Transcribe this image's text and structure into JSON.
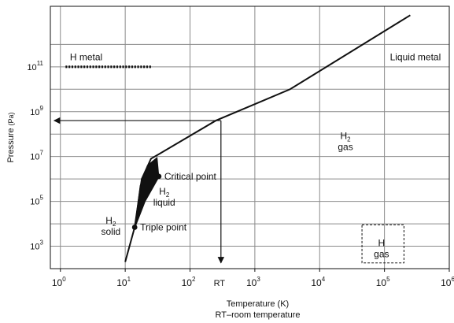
{
  "chart_data": {
    "type": "line",
    "title": "",
    "xlabel": "Temperature (K)",
    "ylabel": "Pressure (Pa)",
    "caption": "RT–room temperature",
    "x_scale": "log",
    "y_scale": "log",
    "xlim": [
      0.7,
      1000000
    ],
    "ylim": [
      100,
      50000000000000.0
    ],
    "grid": true,
    "x_ticks": [
      {
        "value": 1,
        "base": "10",
        "exp": "0"
      },
      {
        "value": 10,
        "base": "10",
        "exp": "1"
      },
      {
        "value": 100,
        "base": "10",
        "exp": "2"
      },
      {
        "value": 1000,
        "base": "10",
        "exp": "3"
      },
      {
        "value": 10000,
        "base": "10",
        "exp": "4"
      },
      {
        "value": 100000,
        "base": "10",
        "exp": "5"
      },
      {
        "value": 1000000,
        "base": "10",
        "exp": "6"
      }
    ],
    "y_ticks": [
      {
        "value": 1000,
        "base": "10",
        "exp": "3"
      },
      {
        "value": 100000,
        "base": "10",
        "exp": "5"
      },
      {
        "value": 10000000,
        "base": "10",
        "exp": "7"
      },
      {
        "value": 1000000000,
        "base": "10",
        "exp": "9"
      },
      {
        "value": 100000000000,
        "base": "10",
        "exp": "11"
      }
    ],
    "rt_marker": {
      "label": "RT",
      "x": 300
    },
    "series": [
      {
        "id": "melting",
        "style": "solid",
        "points": [
          [
            10,
            200
          ],
          [
            14,
            7000
          ]
        ]
      },
      {
        "id": "upper",
        "style": "solid",
        "points": [
          [
            14,
            7000
          ],
          [
            18,
            1000000
          ],
          [
            25,
            8000000
          ],
          [
            32,
            12000000
          ],
          [
            250,
            400000000
          ],
          [
            3500,
            10000000000
          ],
          [
            250000,
            20000000000000
          ]
        ]
      },
      {
        "id": "boiling",
        "style": "solid",
        "points": [
          [
            14,
            7000
          ],
          [
            20,
            100000
          ],
          [
            33,
            1300000
          ]
        ]
      },
      {
        "id": "metal-boundary",
        "style": "dotted",
        "points": [
          [
            1.2,
            100000000000
          ],
          [
            25,
            100000000000
          ]
        ]
      }
    ],
    "region_fill": {
      "points": [
        [
          14,
          7000
        ],
        [
          17,
          500000
        ],
        [
          22,
          4000000
        ],
        [
          31,
          9000000
        ],
        [
          33,
          1300000
        ],
        [
          20,
          100000
        ]
      ]
    },
    "points": [
      {
        "id": "triple-point",
        "x": 14,
        "y": 7000,
        "label": "Triple point"
      },
      {
        "id": "critical-point",
        "x": 33,
        "y": 1300000,
        "label": "Critical point"
      }
    ],
    "arrows": [
      {
        "id": "rt-vertical-arrow",
        "from": [
          300,
          400000000
        ],
        "to": [
          300,
          180
        ]
      },
      {
        "id": "rt-horizontal-arrow",
        "from": [
          300,
          400000000
        ],
        "to": [
          0.8,
          400000000
        ]
      }
    ],
    "regions": [
      {
        "id": "h-metal",
        "lines": [
          "H metal"
        ],
        "x": 2.5,
        "y": 200000000000
      },
      {
        "id": "liquid-metal",
        "lines": [
          "Liquid metal"
        ],
        "x": 300000,
        "y": 200000000000
      },
      {
        "id": "h2-gas",
        "lines": [
          "H2",
          "gas"
        ],
        "x": 25000,
        "y": 60000000
      },
      {
        "id": "h2-liquid",
        "lines": [
          "H2",
          "liquid"
        ],
        "x": 40,
        "y": 200000
      },
      {
        "id": "h2-solid",
        "lines": [
          "H2",
          "solid"
        ],
        "x": 6,
        "y": 10000
      },
      {
        "id": "h-gas",
        "lines": [
          "H",
          "gas"
        ],
        "x": 90000,
        "y": 1000,
        "boxed": true
      }
    ],
    "h_gas_box": {
      "x": [
        45000,
        200000
      ],
      "y": [
        180,
        9000
      ]
    }
  }
}
